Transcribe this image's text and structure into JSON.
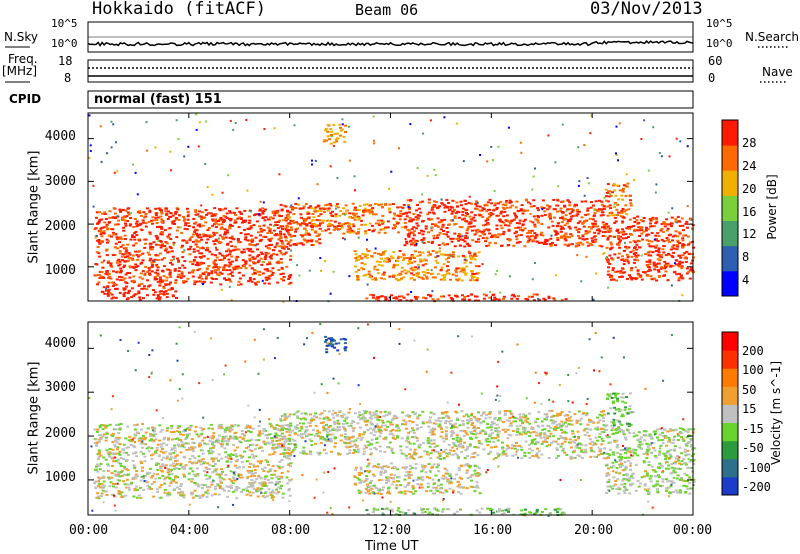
{
  "header": {
    "station": "Hokkaido (fitACF)",
    "beam": "Beam 06",
    "date": "03/Nov/2013"
  },
  "strips": {
    "nsky": {
      "label": "N.Sky",
      "ticks": [
        "10^5",
        "10^0"
      ]
    },
    "nsearch": {
      "label": "N.Search",
      "ticks": [
        "10^5",
        "10^0"
      ]
    },
    "freq": {
      "label_line1": "Freq.",
      "label_line2": "[MHz]",
      "ticks": [
        "18",
        "8"
      ]
    },
    "nave": {
      "label": "Nave",
      "ticks": [
        "60",
        "0"
      ]
    },
    "cpid": {
      "label": "CPID",
      "value": "normal (fast) 151"
    }
  },
  "chart_data": [
    {
      "type": "heatmap",
      "title": "Power",
      "ylabel": "Slant Range [km]",
      "yticks": [
        "1000",
        "2000",
        "3000",
        "4000"
      ],
      "ylim": [
        200,
        4600
      ],
      "xlim": [
        0,
        24
      ],
      "colorbar": {
        "label": "Power [dB]",
        "ticks": [
          "4",
          "8",
          "12",
          "16",
          "20",
          "24",
          "28"
        ]
      },
      "colors": [
        "#0000ff",
        "#2f5fb0",
        "#4aa06a",
        "#7bcf3c",
        "#f0b000",
        "#ff6a00",
        "#ff1a00"
      ],
      "regions": [
        {
          "t": [
            0.2,
            8.0
          ],
          "r": [
            600,
            2400
          ],
          "v": 5.8
        },
        {
          "t": [
            0.5,
            3.5
          ],
          "r": [
            250,
            600
          ],
          "v": 6.5
        },
        {
          "t": [
            7.5,
            9.2
          ],
          "r": [
            1500,
            2500
          ],
          "v": 5.5
        },
        {
          "t": [
            8.5,
            12.5
          ],
          "r": [
            1800,
            2500
          ],
          "v": 5.2
        },
        {
          "t": [
            9.3,
            10.2
          ],
          "r": [
            3900,
            4350
          ],
          "v": 4.2
        },
        {
          "t": [
            10.5,
            15.5
          ],
          "r": [
            700,
            1400
          ],
          "v": 4.6
        },
        {
          "t": [
            11.0,
            19.0
          ],
          "r": [
            220,
            380
          ],
          "v": 6.2
        },
        {
          "t": [
            12.5,
            20.5
          ],
          "r": [
            1500,
            2600
          ],
          "v": 5.8
        },
        {
          "t": [
            20.5,
            24.0
          ],
          "r": [
            700,
            2200
          ],
          "v": 6.0
        },
        {
          "t": [
            20.5,
            21.5
          ],
          "r": [
            2200,
            3000
          ],
          "v": 5.2
        }
      ]
    },
    {
      "type": "heatmap",
      "title": "Velocity",
      "ylabel": "Slant Range [km]",
      "yticks": [
        "1000",
        "2000",
        "3000",
        "4000"
      ],
      "ylim": [
        200,
        4600
      ],
      "xlim": [
        0,
        24
      ],
      "colorbar": {
        "label": "Velocity [m s^-1]",
        "ticks": [
          "200",
          "100",
          "50",
          "15",
          "-15",
          "-50",
          "-100",
          "-200"
        ]
      },
      "colors": [
        "#1a3cc8",
        "#2e6f8c",
        "#2e9a3e",
        "#6ad42e",
        "#c0c0c0",
        "#f0a030",
        "#ff7a00",
        "#ff3000",
        "#ff0000"
      ],
      "regions": [
        {
          "t": [
            0.2,
            8.0
          ],
          "r": [
            600,
            2300
          ],
          "v": 4.0
        },
        {
          "t": [
            7.5,
            12.5
          ],
          "r": [
            1600,
            2600
          ],
          "v": 4.0
        },
        {
          "t": [
            9.3,
            10.2
          ],
          "r": [
            3900,
            4300
          ],
          "v": 0.3
        },
        {
          "t": [
            10.5,
            15.5
          ],
          "r": [
            700,
            1400
          ],
          "v": 4.2
        },
        {
          "t": [
            11.0,
            19.0
          ],
          "r": [
            220,
            380
          ],
          "v": 3.2
        },
        {
          "t": [
            12.5,
            20.5
          ],
          "r": [
            1500,
            2600
          ],
          "v": 4.0
        },
        {
          "t": [
            20.5,
            24.0
          ],
          "r": [
            700,
            2200
          ],
          "v": 3.6
        },
        {
          "t": [
            20.5,
            21.5
          ],
          "r": [
            2200,
            3000
          ],
          "v": 3.0
        }
      ]
    }
  ],
  "xaxis": {
    "ticks": [
      "00:00",
      "04:00",
      "08:00",
      "12:00",
      "16:00",
      "20:00",
      "00:00"
    ],
    "label": "Time UT"
  }
}
